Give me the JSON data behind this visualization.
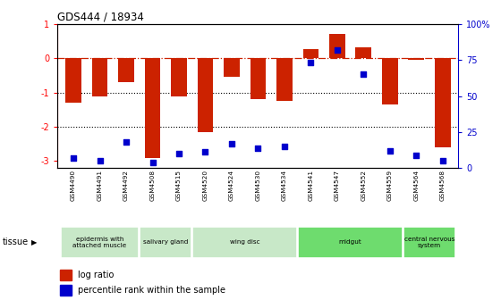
{
  "title": "GDS444 / 18934",
  "samples": [
    "GSM4490",
    "GSM4491",
    "GSM4492",
    "GSM4508",
    "GSM4515",
    "GSM4520",
    "GSM4524",
    "GSM4530",
    "GSM4534",
    "GSM4541",
    "GSM4547",
    "GSM4552",
    "GSM4559",
    "GSM4564",
    "GSM4568"
  ],
  "log_ratio": [
    -1.3,
    -1.1,
    -0.7,
    -2.9,
    -1.1,
    -2.15,
    -0.55,
    -1.2,
    -1.25,
    0.28,
    0.72,
    0.33,
    -1.35,
    -0.05,
    -2.6
  ],
  "percentile": [
    7,
    5,
    18,
    4,
    10,
    11,
    17,
    14,
    15,
    73,
    82,
    65,
    12,
    9,
    5
  ],
  "tissues": [
    {
      "label": "epidermis with\nattached muscle",
      "start": 0,
      "end": 3,
      "color": "#c8e8c8"
    },
    {
      "label": "salivary gland",
      "start": 3,
      "end": 5,
      "color": "#c8e8c8"
    },
    {
      "label": "wing disc",
      "start": 5,
      "end": 9,
      "color": "#c8e8c8"
    },
    {
      "label": "midgut",
      "start": 9,
      "end": 13,
      "color": "#6edc6e"
    },
    {
      "label": "central nervous\nsystem",
      "start": 13,
      "end": 15,
      "color": "#6edc6e"
    }
  ],
  "bar_color": "#cc2200",
  "dot_color": "#0000cc",
  "ylim_left": [
    -3.2,
    1.0
  ],
  "ylim_right": [
    0,
    100
  ],
  "yticks_left": [
    -3,
    -2,
    -1,
    0,
    1
  ],
  "yticks_right": [
    0,
    25,
    50,
    75,
    100
  ],
  "yticklabels_right": [
    "0",
    "25",
    "50",
    "75",
    "100%"
  ],
  "hline_y": 0,
  "dotted_lines": [
    -1,
    -2
  ]
}
